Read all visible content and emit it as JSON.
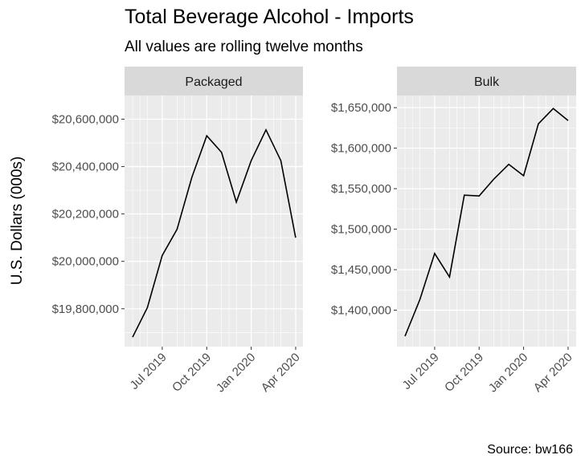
{
  "title": "Total Beverage Alcohol - Imports",
  "subtitle": "All values are rolling twelve months",
  "ylabel": "U.S. Dollars (000s)",
  "caption": "Source: bw166",
  "chart_data": [
    {
      "type": "line",
      "panel": "Packaged",
      "x_tick_labels": [
        "Jul 2019",
        "Oct 2019",
        "Jan 2020",
        "Apr 2020"
      ],
      "y_tick_labels": [
        "$19,800,000",
        "$20,000,000",
        "$20,200,000",
        "$20,400,000",
        "$20,600,000"
      ],
      "y_ticks": [
        19800000,
        20000000,
        20200000,
        20400000,
        20600000
      ],
      "ylim": [
        19640000,
        20700000
      ],
      "x": [
        "2019-05",
        "2019-06",
        "2019-07",
        "2019-08",
        "2019-09",
        "2019-10",
        "2019-11",
        "2019-12",
        "2020-01",
        "2020-02",
        "2020-03",
        "2020-04"
      ],
      "values": [
        19680000,
        19805000,
        20025000,
        20135000,
        20355000,
        20530000,
        20460000,
        20250000,
        20425000,
        20555000,
        20425000,
        20100000
      ],
      "grid": true
    },
    {
      "type": "line",
      "panel": "Bulk",
      "x_tick_labels": [
        "Jul 2019",
        "Oct 2019",
        "Jan 2020",
        "Apr 2020"
      ],
      "y_tick_labels": [
        "$1,400,000",
        "$1,450,000",
        "$1,500,000",
        "$1,550,000",
        "$1,600,000",
        "$1,650,000"
      ],
      "y_ticks": [
        1400000,
        1450000,
        1500000,
        1550000,
        1600000,
        1650000
      ],
      "ylim": [
        1355000,
        1665000
      ],
      "x": [
        "2019-05",
        "2019-06",
        "2019-07",
        "2019-08",
        "2019-09",
        "2019-10",
        "2019-11",
        "2019-12",
        "2020-01",
        "2020-02",
        "2020-03",
        "2020-04"
      ],
      "values": [
        1368000,
        1413000,
        1470000,
        1441000,
        1542000,
        1541000,
        1562000,
        1580000,
        1566000,
        1630000,
        1649000,
        1634000
      ],
      "grid": true
    }
  ]
}
